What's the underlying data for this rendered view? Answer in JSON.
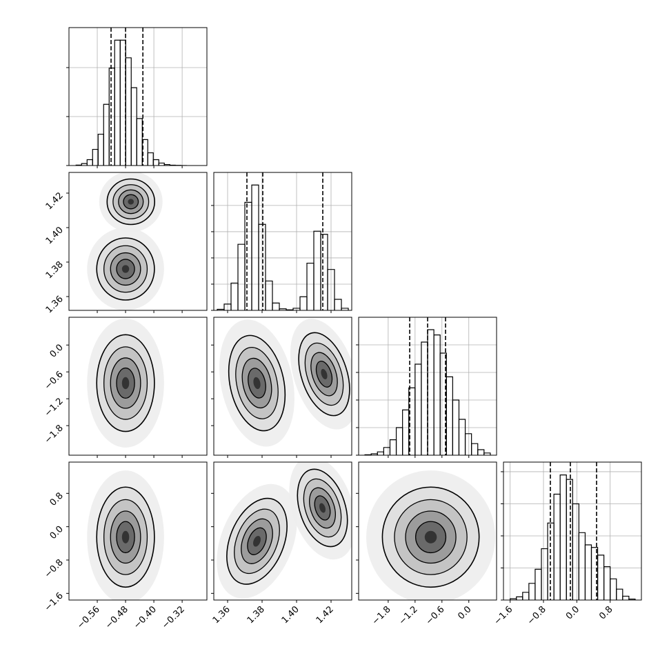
{
  "chart_data": {
    "type": "corner",
    "grid": true,
    "variables": [
      {
        "xlim": [
          -0.64,
          -0.25
        ],
        "xticks": [
          {
            "value": -0.56,
            "label": "−0.56"
          },
          {
            "value": -0.48,
            "label": "−0.48"
          },
          {
            "value": -0.4,
            "label": "−0.40"
          },
          {
            "value": -0.32,
            "label": "−0.32"
          }
        ]
      },
      {
        "xlim": [
          1.352,
          1.432
        ],
        "xticks": [
          1.36,
          1.38,
          {
            "value": 1.4,
            "label": "1.40"
          },
          1.42
        ]
      },
      {
        "xlim": [
          -2.46,
          0.62
        ],
        "xticks": [
          {
            "value": -1.8,
            "label": "−1.8"
          },
          {
            "value": -1.2,
            "label": "−1.2"
          },
          {
            "value": -0.6,
            "label": "−0.6"
          },
          {
            "value": 0,
            "label": "0.0"
          }
        ]
      },
      {
        "xlim": [
          -1.76,
          1.55
        ],
        "xticks": [
          {
            "value": -1.6,
            "label": "−1.6"
          },
          {
            "value": -0.8,
            "label": "−0.8"
          },
          {
            "value": 0,
            "label": "0.0"
          },
          0.8
        ]
      }
    ],
    "histograms": [
      {
        "bins": [
          -0.62,
          -0.6044,
          -0.5888,
          -0.5732,
          -0.5576,
          -0.542,
          -0.5264,
          -0.5108,
          -0.4952,
          -0.4796,
          -0.464,
          -0.4484,
          -0.4328,
          -0.4172,
          -0.4016,
          -0.386,
          -0.3704,
          -0.3548,
          -0.3392,
          -0.3236,
          -0.308
        ],
        "counts": [
          10,
          40,
          120,
          330,
          640,
          1250,
          1990,
          2560,
          2560,
          2200,
          1590,
          960,
          530,
          260,
          120,
          50,
          20,
          8,
          3,
          1
        ],
        "ylim": [
          0,
          2817
        ],
        "yticks": [
          0,
          1000,
          2000
        ],
        "quantiles": [
          -0.521,
          -0.48,
          -0.431
        ]
      },
      {
        "bins": [
          1.354,
          1.358,
          1.362,
          1.366,
          1.37,
          1.374,
          1.378,
          1.382,
          1.386,
          1.39,
          1.394,
          1.398,
          1.402,
          1.406,
          1.41,
          1.414,
          1.418,
          1.422,
          1.426,
          1.43
        ],
        "counts": [
          20,
          120,
          520,
          1260,
          2060,
          2390,
          1640,
          560,
          140,
          30,
          10,
          40,
          260,
          900,
          1510,
          1450,
          780,
          210,
          40
        ],
        "ylim": [
          0,
          2630
        ],
        "yticks": [
          0,
          500,
          1000,
          1500,
          2000
        ],
        "quantiles": [
          1.3712,
          1.3804,
          1.4152
        ]
      },
      {
        "bins": [
          -2.32,
          -2.18,
          -2.04,
          -1.9,
          -1.76,
          -1.62,
          -1.48,
          -1.34,
          -1.2,
          -1.06,
          -0.92,
          -0.78,
          -0.64,
          -0.5,
          -0.36,
          -0.22,
          -0.08,
          0.06,
          0.2,
          0.34,
          0.48
        ],
        "counts": [
          8,
          25,
          60,
          140,
          280,
          500,
          820,
          1220,
          1650,
          2050,
          2275,
          2180,
          1850,
          1420,
          1000,
          650,
          390,
          210,
          100,
          40
        ],
        "ylim": [
          0,
          2500
        ],
        "yticks": [
          0,
          500,
          1000,
          1500,
          2000
        ],
        "quantiles": [
          -1.32,
          -0.92,
          -0.52
        ]
      },
      {
        "bins": [
          -1.6,
          -1.45,
          -1.3,
          -1.15,
          -1.0,
          -0.85,
          -0.7,
          -0.55,
          -0.4,
          -0.25,
          -0.1,
          0.05,
          0.2,
          0.35,
          0.5,
          0.65,
          0.8,
          0.95,
          1.1,
          1.25,
          1.4
        ],
        "counts": [
          20,
          50,
          120,
          260,
          480,
          800,
          1200,
          1650,
          1950,
          1880,
          1500,
          1050,
          860,
          820,
          700,
          520,
          330,
          170,
          60,
          15
        ],
        "ylim": [
          0,
          2150
        ],
        "yticks": [
          0,
          500,
          1000,
          1500,
          2000
        ],
        "quantiles": [
          -0.635,
          -0.155,
          0.474
        ]
      }
    ],
    "panels": [
      {
        "row": 1,
        "col": 0,
        "modes": [
          {
            "cx": -0.465,
            "cy": 1.415,
            "sx": 0.028,
            "sy": 0.0055,
            "angle": 0
          },
          {
            "cx": -0.48,
            "cy": 1.376,
            "sx": 0.034,
            "sy": 0.0075,
            "angle": 0
          }
        ]
      },
      {
        "row": 2,
        "col": 0,
        "modes": [
          {
            "cx": -0.48,
            "cy": -0.85,
            "sx": 0.034,
            "sy": 0.45,
            "angle": 0
          }
        ]
      },
      {
        "row": 2,
        "col": 1,
        "modes": [
          {
            "cx": 1.377,
            "cy": -0.85,
            "sx": 0.0065,
            "sy": 0.45,
            "angle": -12
          },
          {
            "cx": 1.416,
            "cy": -0.65,
            "sx": 0.0055,
            "sy": 0.4,
            "angle": -18
          }
        ]
      },
      {
        "row": 3,
        "col": 0,
        "modes": [
          {
            "cx": -0.48,
            "cy": -0.25,
            "sx": 0.034,
            "sy": 0.5,
            "angle": 0
          }
        ]
      },
      {
        "row": 3,
        "col": 1,
        "modes": [
          {
            "cx": 1.377,
            "cy": -0.35,
            "sx": 0.0065,
            "sy": 0.45,
            "angle": 22
          },
          {
            "cx": 1.415,
            "cy": 0.45,
            "sx": 0.0055,
            "sy": 0.4,
            "angle": -18
          }
        ]
      },
      {
        "row": 3,
        "col": 2,
        "modes": [
          {
            "cx": -0.85,
            "cy": -0.25,
            "sx": 0.45,
            "sy": 0.5,
            "angle": 0
          }
        ]
      }
    ]
  }
}
